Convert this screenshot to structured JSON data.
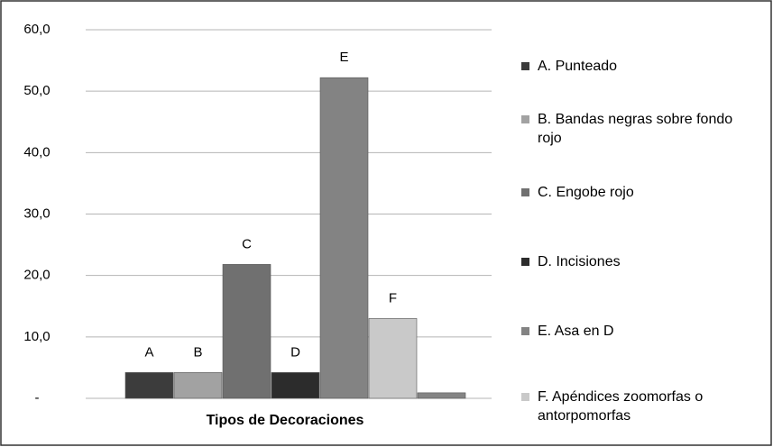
{
  "chart_data": {
    "type": "bar",
    "x_label": "Tipos de Decoraciones",
    "categories": [
      "A",
      "B",
      "C",
      "D",
      "E",
      "F",
      null
    ],
    "values": [
      4.2,
      4.2,
      21.8,
      4.2,
      52.2,
      13.0,
      0.9
    ],
    "colors": [
      "#3c3c3c",
      "#a2a2a2",
      "#707070",
      "#2c2c2c",
      "#838383",
      "#c9c9c9",
      "#848484"
    ],
    "legend": [
      {
        "name": "A. Punteado",
        "color": "#3c3c3c"
      },
      {
        "name": "B. Bandas negras sobre fondo rojo",
        "color": "#a2a2a2"
      },
      {
        "name": "C. Engobe rojo",
        "color": "#707070"
      },
      {
        "name": "D. Incisiones",
        "color": "#2c2c2c"
      },
      {
        "name": "E. Asa en D",
        "color": "#838383"
      },
      {
        "name": "F. Apéndices zoomorfas o antorpomorfas",
        "color": "#c9c9c9"
      }
    ],
    "ylim": [
      0,
      60
    ],
    "yticks": [
      {
        "value": 0,
        "label": "-"
      },
      {
        "value": 10,
        "label": "10,0"
      },
      {
        "value": 20,
        "label": "20,0"
      },
      {
        "value": 30,
        "label": "30,0"
      },
      {
        "value": 40,
        "label": "40,0"
      },
      {
        "value": 50,
        "label": "50,0"
      },
      {
        "value": 60,
        "label": "60,0"
      }
    ],
    "grid": true,
    "legend_position": "right"
  }
}
